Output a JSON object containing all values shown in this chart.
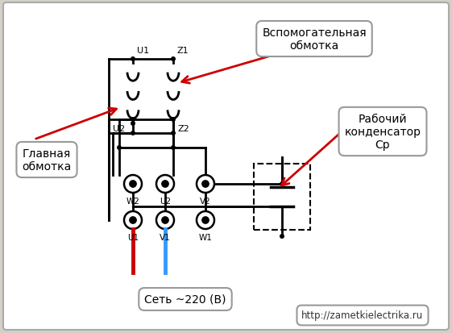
{
  "bg_color": "#d4d0c8",
  "white": "#ffffff",
  "black": "#000000",
  "red": "#cc0000",
  "blue": "#3399ff",
  "label_aux": "Вспомогательная\nобмотка",
  "label_cap": "Рабочий\nконденсатор\nСр",
  "label_main": "Главная\nобмотка",
  "label_net": "Сеть ~220 (В)",
  "label_url": "http://zametkielectrika.ru",
  "lw": 2.0
}
